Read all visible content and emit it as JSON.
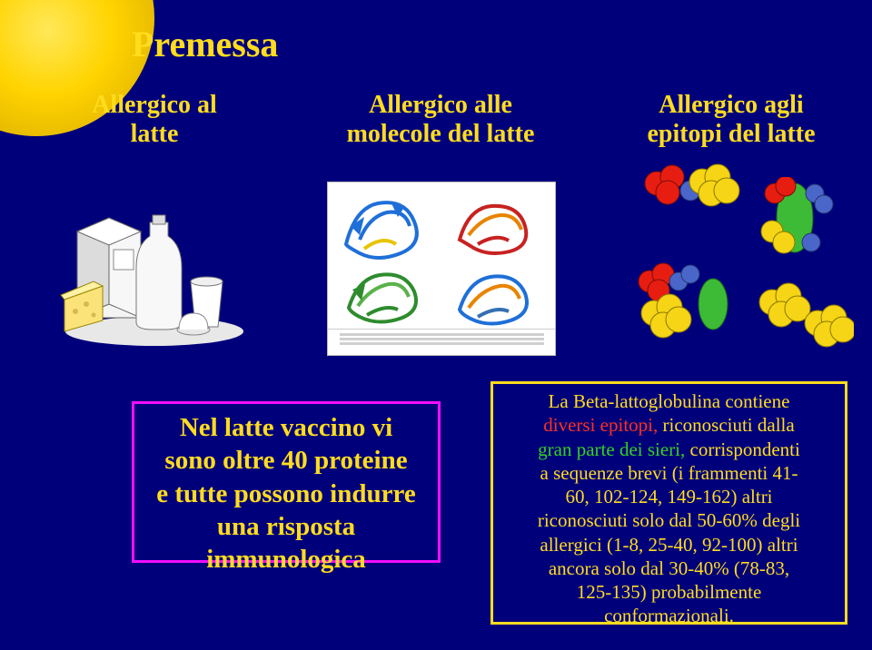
{
  "title": "Premessa",
  "columns": {
    "col1": "Allergico al<br>latte",
    "col2": "Allergico alle<br>molecole del latte",
    "col3": "Allergico agli<br>epitopi del latte"
  },
  "pink_box": {
    "line1": "Nel latte vaccino vi",
    "line2": "sono oltre 40 proteine",
    "line3": "e tutte possono indurre",
    "line4": "una risposta",
    "line5": "immunologica"
  },
  "yellow_box": {
    "l1": "La Beta-lattoglobulina contiene",
    "l2_a": "diversi epitopi,",
    "l2_b": " riconosciuti dalla",
    "l3_a": "gran parte dei sieri,",
    "l3_b": " corrispondenti",
    "l4": "a sequenze brevi (i frammenti 41-",
    "l5": "60, 102-124, 149-162) altri",
    "l6": "riconosciuti solo dal 50-60% degli",
    "l7": "allergici (1-8, 25-40, 92-100) altri",
    "l8": "ancora solo dal 30-40% (78-83,",
    "l9": "125-135) probabilmente",
    "l10": "conformazionali."
  },
  "colors": {
    "bg": "#00007b",
    "yellow": "#ffdc1e",
    "pink": "#f30dff",
    "red": "#ff3020",
    "green": "#35d01f",
    "epitope_red": "#e81d12",
    "epitope_yellow": "#f5d515",
    "epitope_blue": "#4a66c9",
    "epitope_green": "#3dbb36"
  }
}
